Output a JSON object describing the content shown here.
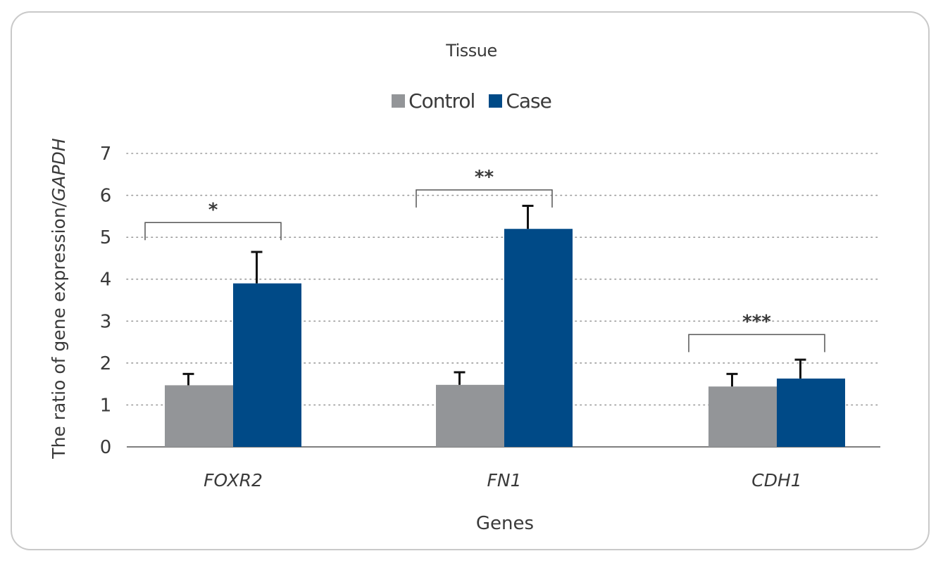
{
  "chart_data": {
    "type": "bar",
    "title": "Tissue",
    "xlabel": "Genes",
    "ylabel": "The ratio of gene expression/",
    "ylabel_italic": "GAPDH",
    "categories": [
      "FOXR2",
      "FN1",
      "CDH1"
    ],
    "series": [
      {
        "name": "Control",
        "values": [
          1.47,
          1.48,
          1.44
        ],
        "errors": [
          0.27,
          0.3,
          0.3
        ],
        "color": "#939598"
      },
      {
        "name": "Case",
        "values": [
          3.9,
          5.2,
          1.63
        ],
        "errors": [
          0.75,
          0.55,
          0.45
        ],
        "color": "#004a87"
      }
    ],
    "ylim": [
      0,
      7
    ],
    "yticks": [
      "0",
      "1",
      "2",
      "3",
      "4",
      "5",
      "6",
      "7"
    ],
    "grid": true,
    "grid_style": "dotted",
    "legend_position": "top-center",
    "significance": [
      {
        "category": "FOXR2",
        "label": "*",
        "bracket_level": 5.35
      },
      {
        "category": "FN1",
        "label": "**",
        "bracket_level": 6.13
      },
      {
        "category": "CDH1",
        "label": "***",
        "bracket_level": 2.68
      }
    ]
  }
}
